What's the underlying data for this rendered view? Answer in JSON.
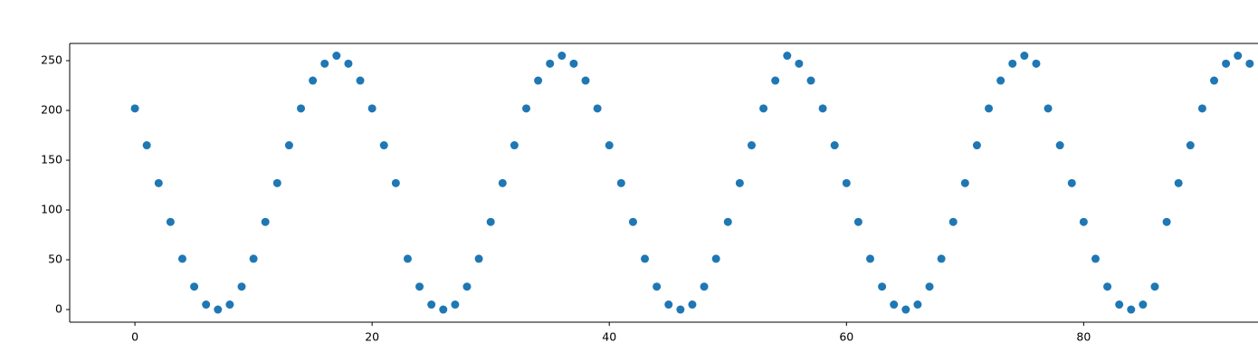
{
  "chart_data": {
    "type": "scatter",
    "color": "#1f77b4",
    "x": [
      0,
      1,
      2,
      3,
      4,
      5,
      6,
      7,
      8,
      9,
      10,
      11,
      12,
      13,
      14,
      15,
      16,
      17,
      18,
      19,
      20,
      21,
      22,
      23,
      24,
      25,
      26,
      27,
      28,
      29,
      30,
      31,
      32,
      33,
      34,
      35,
      36,
      37,
      38,
      39,
      40,
      41,
      42,
      43,
      44,
      45,
      46,
      47,
      48,
      49,
      50,
      51,
      52,
      53,
      54,
      55,
      56,
      57,
      58,
      59,
      60,
      61,
      62,
      63,
      64,
      65,
      66,
      67,
      68,
      69,
      70,
      71,
      72,
      73,
      74,
      75,
      76,
      77,
      78,
      79,
      80,
      81,
      82,
      83,
      84,
      85,
      86,
      87,
      88,
      89,
      90,
      91,
      92,
      93,
      94
    ],
    "values": [
      202,
      165,
      127,
      88,
      51,
      23,
      5,
      0,
      5,
      23,
      51,
      88,
      127,
      165,
      202,
      230,
      247,
      255,
      247,
      230,
      202,
      165,
      127,
      51,
      23,
      5,
      0,
      5,
      23,
      51,
      88,
      127,
      165,
      202,
      230,
      247,
      255,
      247,
      230,
      202,
      165,
      127,
      88,
      51,
      23,
      5,
      0,
      5,
      23,
      51,
      88,
      127,
      165,
      202,
      230,
      255,
      247,
      230,
      202,
      165,
      127,
      88,
      51,
      23,
      5,
      0,
      5,
      23,
      51,
      88,
      127,
      165,
      202,
      230,
      247,
      255,
      247,
      202,
      165,
      127,
      88,
      51,
      23,
      5,
      0,
      5,
      23,
      88,
      127,
      165,
      202,
      230,
      247,
      255,
      247
    ],
    "xlim": [
      -5.5,
      94.7
    ],
    "ylim": [
      -12.7,
      267.3
    ],
    "xticks": [
      0,
      20,
      40,
      60,
      80
    ],
    "yticks": [
      0,
      50,
      100,
      150,
      200,
      250
    ]
  }
}
